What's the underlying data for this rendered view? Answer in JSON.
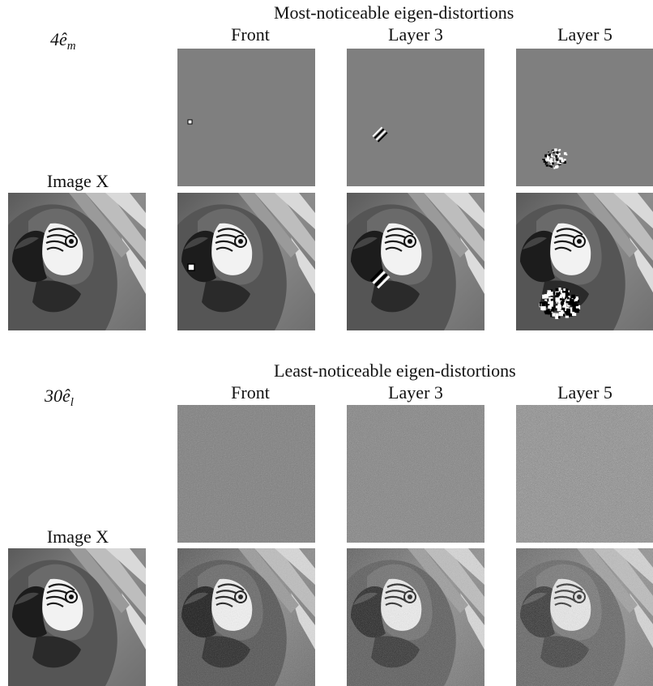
{
  "sections": [
    {
      "heading": "Most-noticeable eigen-distortions",
      "scale_label": {
        "coef": "4",
        "vec": "ê",
        "sub": "m"
      },
      "columns": [
        "Front",
        "Layer 3",
        "Layer 5"
      ],
      "image_label": "Image X",
      "distortions": [
        {
          "style": "localized",
          "blob": "tiny-square"
        },
        {
          "style": "localized",
          "blob": "small-stripes"
        },
        {
          "style": "localized",
          "blob": "patchy-cluster"
        }
      ],
      "distorted_images": [
        {
          "noise": "local-small"
        },
        {
          "noise": "local-medium"
        },
        {
          "noise": "local-large"
        }
      ]
    },
    {
      "heading": "Least-noticeable eigen-distortions",
      "scale_label": {
        "coef": "30",
        "vec": "ê",
        "sub": "l"
      },
      "columns": [
        "Front",
        "Layer 3",
        "Layer 5"
      ],
      "image_label": "Image X",
      "distortions": [
        {
          "style": "texture",
          "amount": 0.35
        },
        {
          "style": "texture",
          "amount": 0.55
        },
        {
          "style": "texture",
          "amount": 0.9
        }
      ],
      "distorted_images": [
        {
          "noise": "global-low"
        },
        {
          "noise": "global-mid"
        },
        {
          "noise": "global-high"
        }
      ]
    }
  ],
  "colors": {
    "panel_gray": "#7f7f7f",
    "text": "#111111"
  }
}
